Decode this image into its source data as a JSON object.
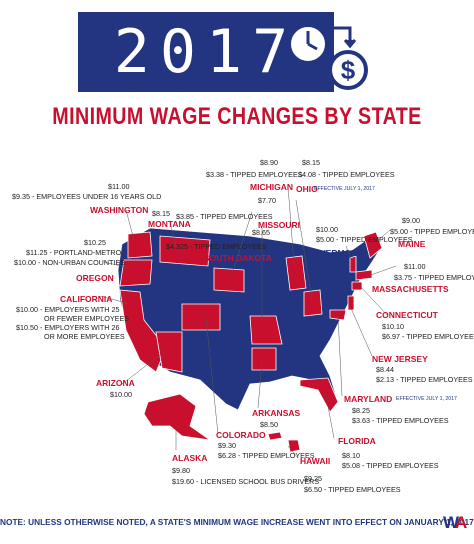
{
  "header": {
    "year": "2017",
    "title": "MINIMUM WAGE CHANGES BY STATE",
    "icons": [
      "clock-icon",
      "exchange-arrows-icon",
      "dollar-coin-icon"
    ]
  },
  "colors": {
    "red": "#c8102e",
    "blue": "#233580"
  },
  "states": {
    "washington": {
      "name": "WASHINGTON",
      "lines": [
        "$11.00",
        "$9.35 - EMPLOYEES UNDER 16 YEARS OLD"
      ]
    },
    "oregon": {
      "name": "OREGON",
      "lines": [
        "$10.25",
        "$11.25 - PORTLAND-METRO",
        "$10.00 - NON-URBAN COUNTIES"
      ]
    },
    "california": {
      "name": "CALIFORNIA",
      "lines": [
        "$10.00 - EMPLOYERS WITH 25",
        "OR FEWER EMPLOYEES",
        "$10.50 - EMPLOYERS WITH 26",
        "OR MORE EMPLOYEES"
      ]
    },
    "arizona": {
      "name": "ARIZONA",
      "lines": [
        "$10.00"
      ]
    },
    "montana": {
      "name": "MONTANA",
      "lines": [
        "$8.15",
        "$4.325 - TIPPED EMPLOYEES"
      ]
    },
    "south_dakota": {
      "name": "SOUTH DAKOTA",
      "lines": [
        "$8.65",
        "$3.85 - TIPPED EMPLOYEES"
      ]
    },
    "missouri": {
      "name": "MISSOURI",
      "lines": [
        "$7.70"
      ]
    },
    "michigan": {
      "name": "MICHIGAN",
      "lines": [
        "$8.90",
        "$3.38 - TIPPED EMPLOYEES"
      ]
    },
    "ohio": {
      "name": "OHIO",
      "effective": "EFFECTIVE JULY 1, 2017",
      "lines": [
        "$8.15",
        "$4.08 - TIPPED EMPLOYEES"
      ]
    },
    "vermont": {
      "name": "VERMONT",
      "lines": [
        "$10.00",
        "$5.00 - TIPPED EMPLOYEES"
      ]
    },
    "maine": {
      "name": "MAINE",
      "lines": [
        "$9.00",
        "$5.00 - TIPPED EMPLOYEES"
      ]
    },
    "massachusetts": {
      "name": "MASSACHUSETTS",
      "lines": [
        "$11.00",
        "$3.75 - TIPPED EMPLOYEES"
      ]
    },
    "connecticut": {
      "name": "CONNECTICUT",
      "lines": [
        "$10.10",
        "$6.97 - TIPPED EMPLOYEES"
      ]
    },
    "new_jersey": {
      "name": "NEW JERSEY",
      "lines": [
        "$8.44",
        "$2.13 - TIPPED EMPLOYEES"
      ]
    },
    "maryland": {
      "name": "MARYLAND",
      "effective": "EFFECTIVE JULY 1, 2017",
      "lines": [
        "$8.25",
        "$3.63 - TIPPED EMPLOYEES"
      ]
    },
    "florida": {
      "name": "FLORIDA",
      "lines": [
        "$8.10",
        "$5.08 - TIPPED EMPLOYEES"
      ]
    },
    "hawaii": {
      "name": "HAWAII",
      "lines": [
        "$9.25",
        "$6.50 - TIPPED EMPLOYEES"
      ]
    },
    "colorado": {
      "name": "COLORADO",
      "lines": [
        "$9.30",
        "$6.28 - TIPPED EMPLOYEES"
      ]
    },
    "alaska": {
      "name": "ALASKA",
      "lines": [
        "$9.80",
        "$19.60 - LICENSED SCHOOL BUS DRIVERS"
      ]
    },
    "arkansas": {
      "name": "ARKANSAS",
      "lines": [
        "$8.50"
      ]
    }
  },
  "footer": {
    "note": "NOTE: UNLESS OTHERWISE NOTED, A STATE'S MINIMUM WAGE INCREASE WENT INTO EFFECT ON JANUARY 1, 2017.",
    "logo": "W/A"
  }
}
